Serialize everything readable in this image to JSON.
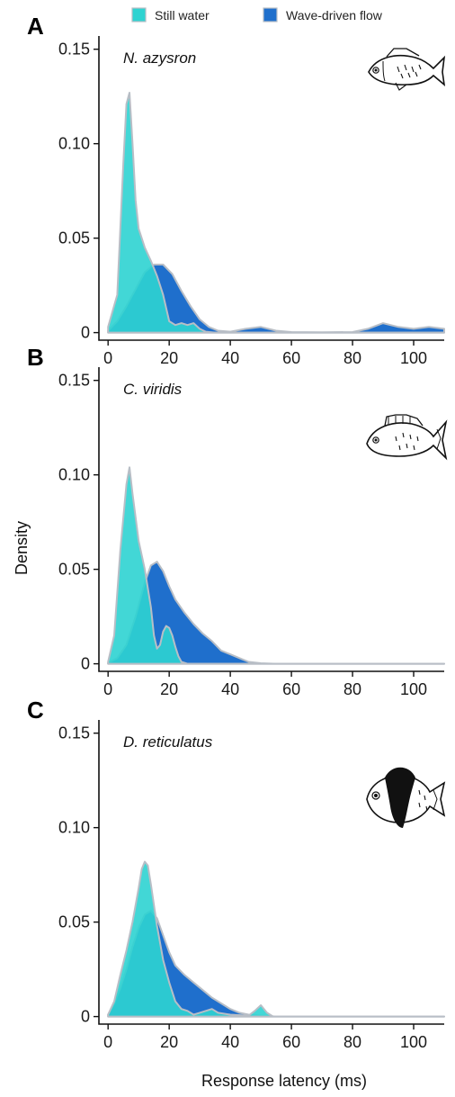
{
  "legend": {
    "still": "Still water",
    "wave": "Wave-driven flow"
  },
  "colors": {
    "still": "#2ed3d1",
    "wave": "#1f6fcc",
    "outline": "#b8bec6"
  },
  "xlabel": "Response latency (ms)",
  "ylabel": "Density",
  "chart_data": [
    {
      "type": "area",
      "panel": "A",
      "title": "N. azysron",
      "icon": "fish-icon",
      "xlim": [
        -3,
        110
      ],
      "ylim": [
        -0.004,
        0.157
      ],
      "xticks": [
        "0",
        "20",
        "40",
        "60",
        "80",
        "100"
      ],
      "xtick_values": [
        0,
        20,
        40,
        60,
        80,
        100
      ],
      "yticks": [
        "0",
        "0.05",
        "0.10",
        "0.15"
      ],
      "ytick_values": [
        0,
        0.05,
        0.1,
        0.15
      ],
      "series": [
        {
          "key": "wave",
          "x": [
            0,
            3,
            6,
            9,
            12,
            15,
            18,
            21,
            24,
            27,
            30,
            33,
            36,
            40,
            45,
            50,
            55,
            60,
            70,
            80,
            85,
            90,
            95,
            100,
            105,
            110
          ],
          "y": [
            0.001,
            0.006,
            0.014,
            0.023,
            0.032,
            0.036,
            0.036,
            0.031,
            0.022,
            0.014,
            0.007,
            0.003,
            0.001,
            0.0005,
            0.002,
            0.003,
            0.001,
            0.0003,
            0.0002,
            0.0003,
            0.002,
            0.005,
            0.003,
            0.002,
            0.003,
            0.002
          ]
        },
        {
          "key": "still",
          "x": [
            0,
            3,
            5,
            6,
            7,
            8,
            9,
            10,
            12,
            14,
            16,
            18,
            20,
            22,
            24,
            26,
            28,
            30,
            32,
            35,
            110
          ],
          "y": [
            0.003,
            0.02,
            0.09,
            0.121,
            0.127,
            0.1,
            0.07,
            0.055,
            0.045,
            0.038,
            0.03,
            0.02,
            0.006,
            0.004,
            0.005,
            0.004,
            0.005,
            0.002,
            0.0005,
            0,
            0
          ]
        }
      ]
    },
    {
      "type": "area",
      "panel": "B",
      "title": "C. viridis",
      "icon": "fish-icon",
      "xlim": [
        -3,
        110
      ],
      "ylim": [
        -0.004,
        0.157
      ],
      "xticks": [
        "0",
        "20",
        "40",
        "60",
        "80",
        "100"
      ],
      "xtick_values": [
        0,
        20,
        40,
        60,
        80,
        100
      ],
      "yticks": [
        "0",
        "0.05",
        "0.10",
        "0.15"
      ],
      "ytick_values": [
        0,
        0.05,
        0.1,
        0.15
      ],
      "series": [
        {
          "key": "wave",
          "x": [
            0,
            3,
            6,
            9,
            12,
            14,
            16,
            18,
            20,
            22,
            25,
            28,
            31,
            34,
            37,
            40,
            43,
            46,
            50,
            55,
            110
          ],
          "y": [
            0.0005,
            0.003,
            0.01,
            0.025,
            0.043,
            0.052,
            0.054,
            0.049,
            0.041,
            0.034,
            0.027,
            0.021,
            0.016,
            0.012,
            0.007,
            0.005,
            0.003,
            0.001,
            0.0003,
            0,
            0
          ]
        },
        {
          "key": "still",
          "x": [
            0,
            2,
            4,
            6,
            7,
            8,
            10,
            12,
            14,
            15,
            16,
            17,
            18,
            19,
            20,
            21,
            22,
            23,
            24,
            26,
            28,
            110
          ],
          "y": [
            0.001,
            0.015,
            0.06,
            0.095,
            0.104,
            0.09,
            0.065,
            0.05,
            0.03,
            0.015,
            0.008,
            0.01,
            0.017,
            0.02,
            0.019,
            0.015,
            0.009,
            0.004,
            0.001,
            0,
            0,
            0
          ]
        }
      ]
    },
    {
      "type": "area",
      "panel": "C",
      "title": "D. reticulatus",
      "icon": "fish-icon",
      "xlim": [
        -3,
        110
      ],
      "ylim": [
        -0.004,
        0.157
      ],
      "xticks": [
        "0",
        "20",
        "40",
        "60",
        "80",
        "100"
      ],
      "xtick_values": [
        0,
        20,
        40,
        60,
        80,
        100
      ],
      "yticks": [
        "0",
        "0.05",
        "0.10",
        "0.15"
      ],
      "ytick_values": [
        0,
        0.05,
        0.1,
        0.15
      ],
      "series": [
        {
          "key": "wave",
          "x": [
            0,
            2,
            4,
            6,
            8,
            10,
            12,
            14,
            16,
            18,
            20,
            22,
            25,
            28,
            31,
            34,
            37,
            40,
            43,
            46,
            50,
            55,
            110
          ],
          "y": [
            0.001,
            0.007,
            0.015,
            0.025,
            0.037,
            0.047,
            0.054,
            0.056,
            0.052,
            0.043,
            0.034,
            0.027,
            0.022,
            0.018,
            0.014,
            0.01,
            0.007,
            0.004,
            0.002,
            0.001,
            0.0005,
            0,
            0
          ]
        },
        {
          "key": "still",
          "x": [
            0,
            2,
            4,
            6,
            8,
            10,
            11,
            12,
            13,
            14,
            16,
            18,
            20,
            22,
            24,
            26,
            28,
            30,
            32,
            34,
            36,
            40,
            46,
            48,
            50,
            52,
            54,
            110
          ],
          "y": [
            0.001,
            0.008,
            0.022,
            0.035,
            0.05,
            0.068,
            0.078,
            0.082,
            0.08,
            0.07,
            0.048,
            0.03,
            0.018,
            0.008,
            0.004,
            0.003,
            0.001,
            0.002,
            0.003,
            0.004,
            0.002,
            0.001,
            0.0005,
            0.003,
            0.006,
            0.002,
            0,
            0
          ]
        }
      ]
    }
  ]
}
